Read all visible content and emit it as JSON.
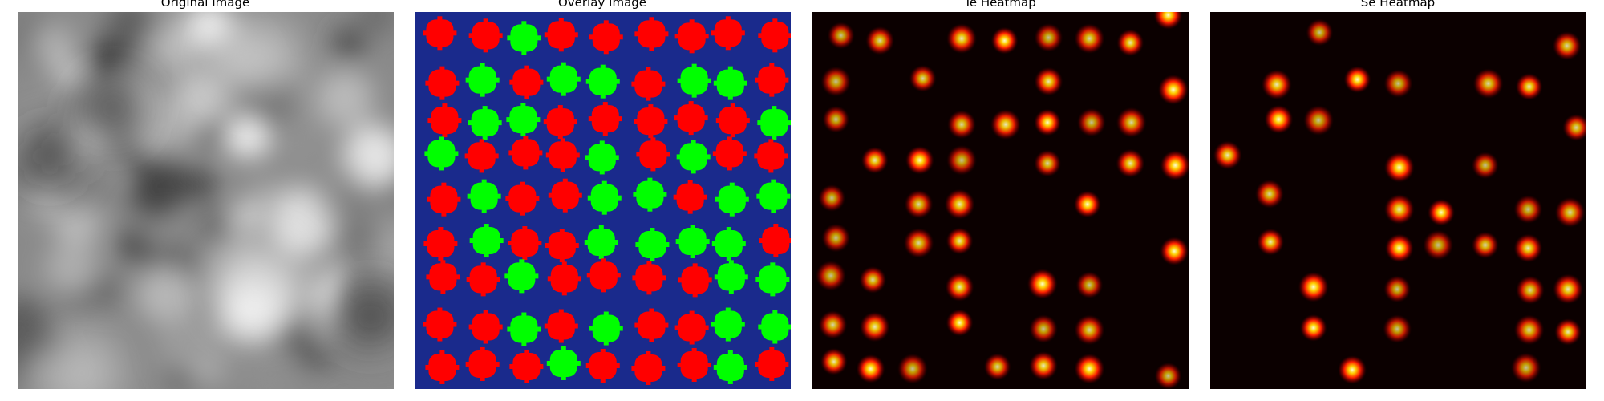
{
  "panels": [
    {
      "title": "Original Image"
    },
    {
      "title": "Overlay Image"
    },
    {
      "title": "Te Heatmap"
    },
    {
      "title": "Se Heatmap"
    }
  ]
}
